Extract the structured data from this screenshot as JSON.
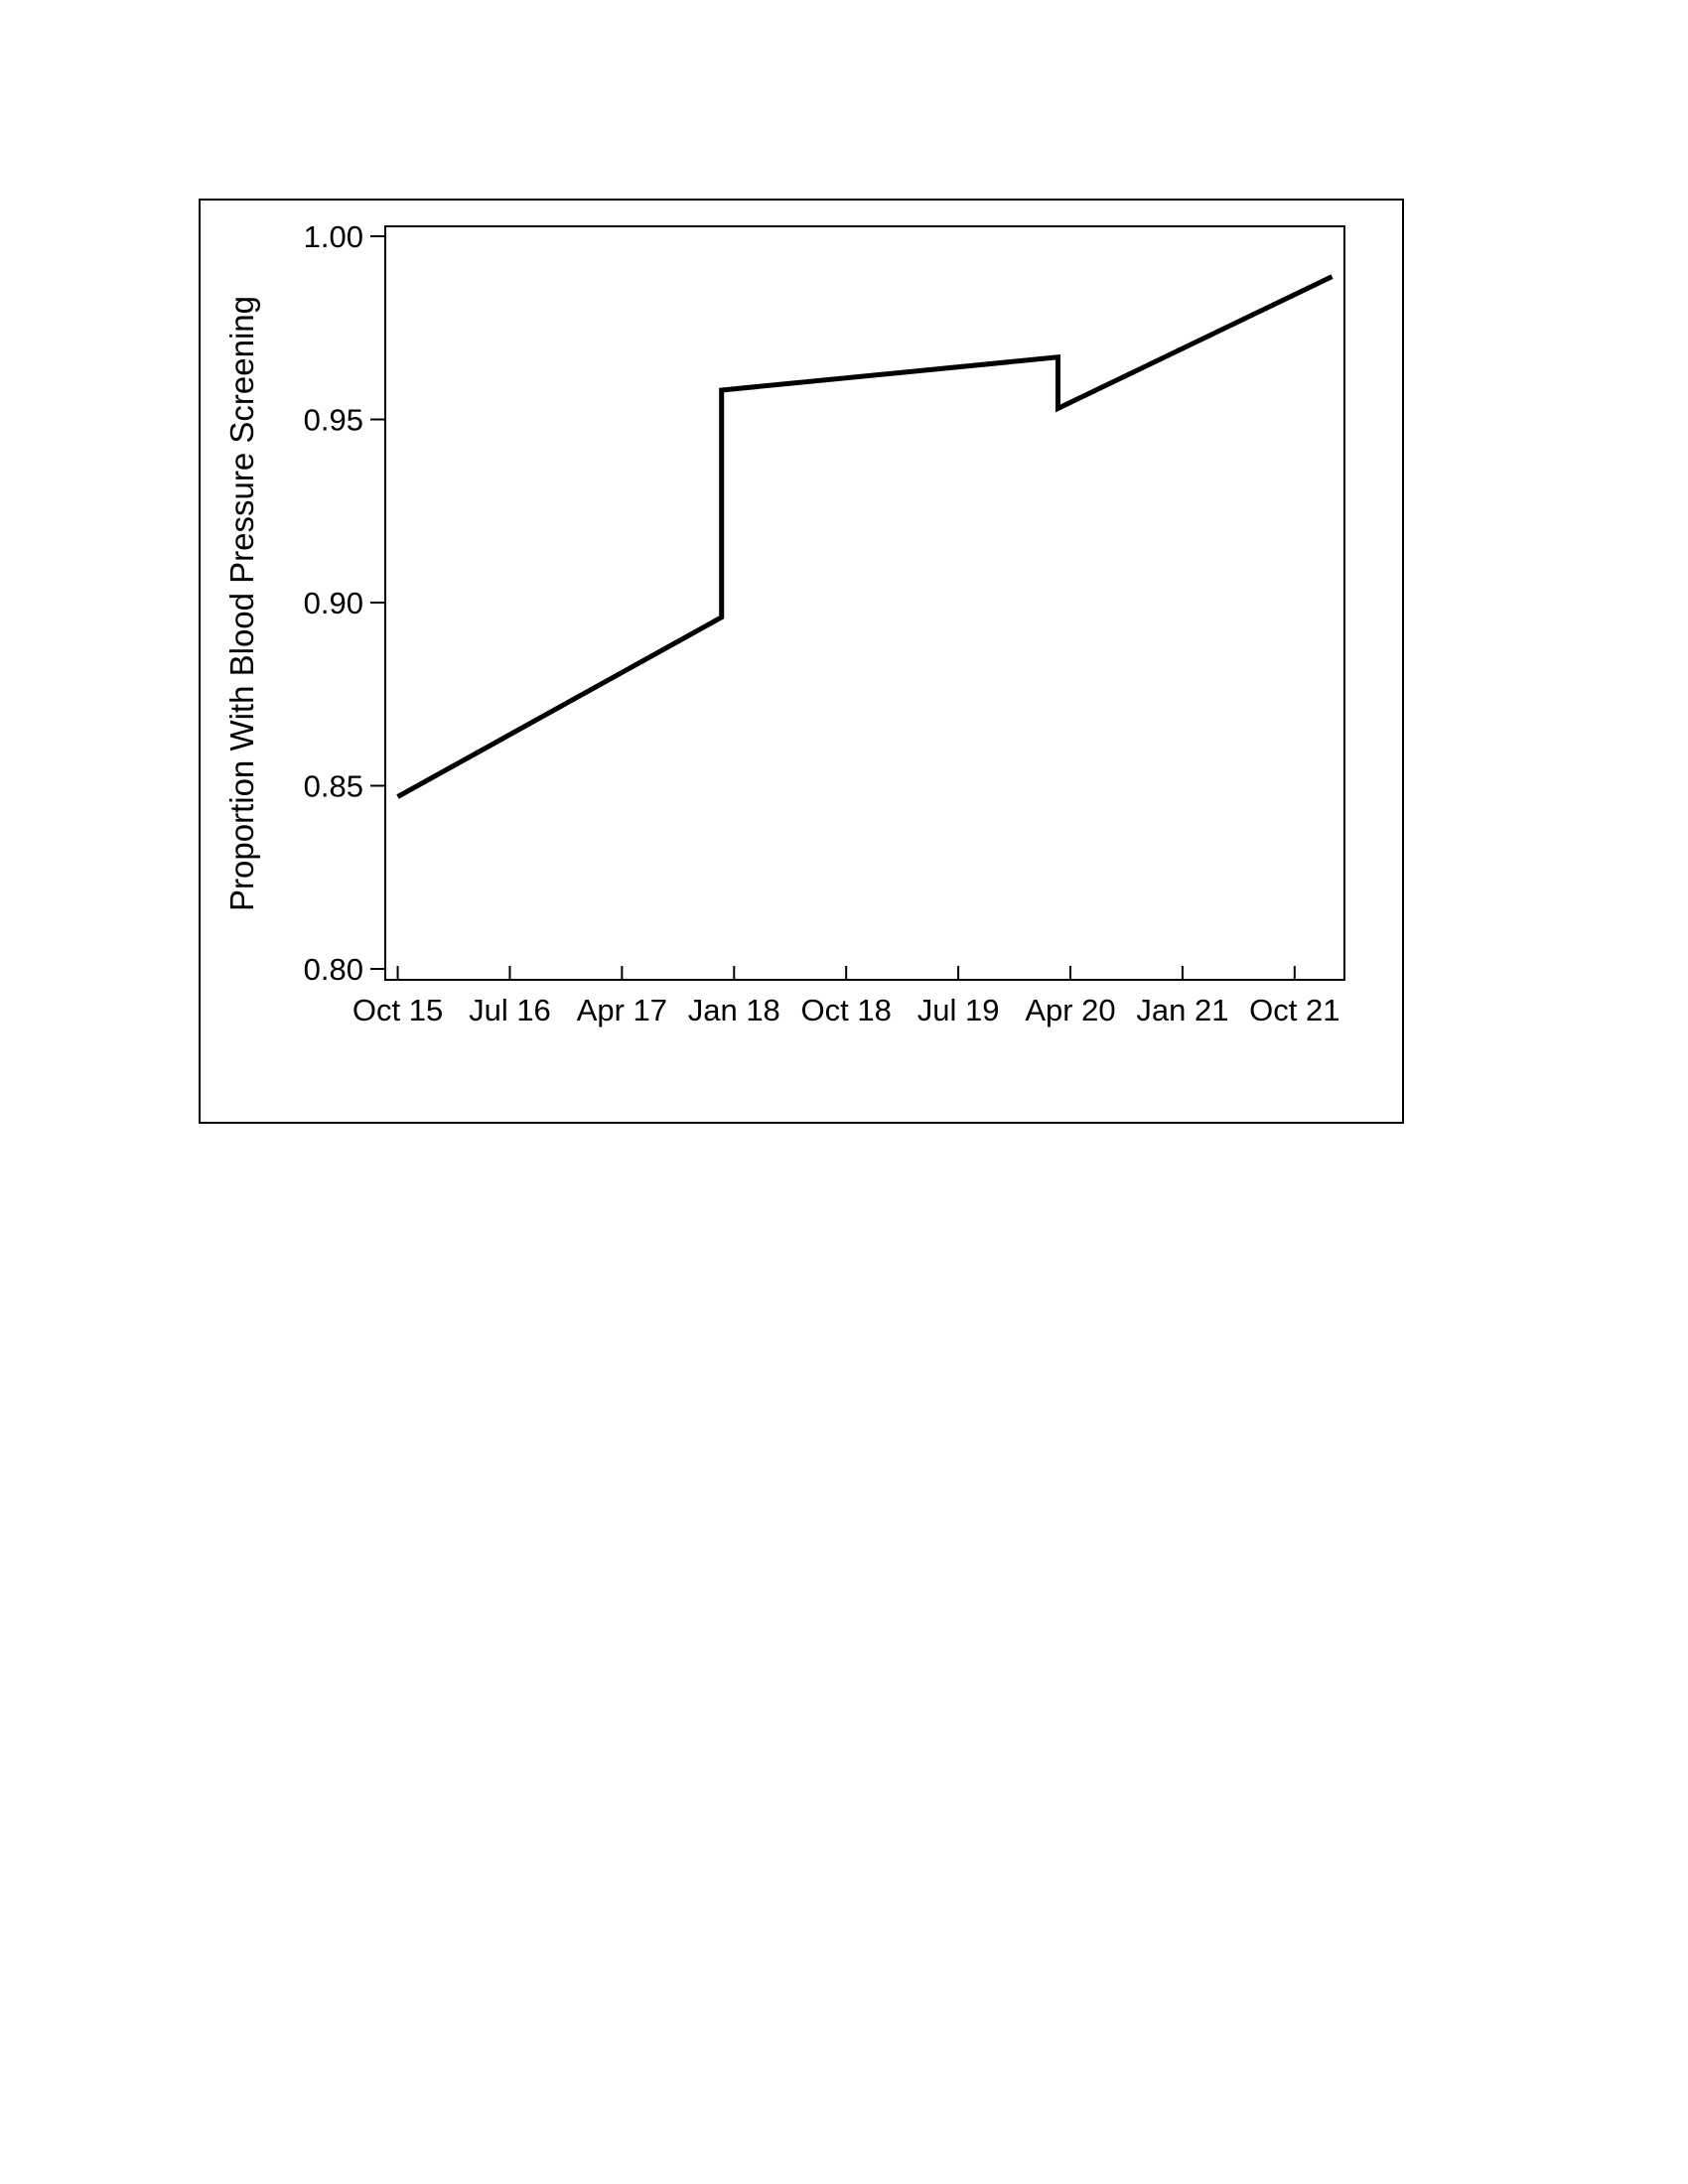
{
  "chart_data": {
    "type": "line",
    "title": "",
    "xlabel": "",
    "ylabel": "Proportion With Blood Pressure Screening",
    "ylim": [
      0.8,
      1.0
    ],
    "y_ticks": [
      {
        "value": 0.8,
        "label": "0.80"
      },
      {
        "value": 0.85,
        "label": "0.85"
      },
      {
        "value": 0.9,
        "label": "0.90"
      },
      {
        "value": 0.95,
        "label": "0.95"
      },
      {
        "value": 1.0,
        "label": "1.00"
      }
    ],
    "x_ticks": [
      {
        "value": "2015-10",
        "label": "Oct 15"
      },
      {
        "value": "2016-07",
        "label": "Jul 16"
      },
      {
        "value": "2017-04",
        "label": "Apr 17"
      },
      {
        "value": "2018-01",
        "label": "Jan 18"
      },
      {
        "value": "2018-10",
        "label": "Oct 18"
      },
      {
        "value": "2019-07",
        "label": "Jul 19"
      },
      {
        "value": "2020-04",
        "label": "Apr 20"
      },
      {
        "value": "2021-01",
        "label": "Jan 21"
      },
      {
        "value": "2021-10",
        "label": "Oct 21"
      }
    ],
    "xlim": [
      "2015-09",
      "2022-02"
    ],
    "grid": false,
    "line_color": "#000000",
    "series": [
      {
        "x": [
          "2015-10",
          "2017-12",
          "2017-12",
          "2020-03",
          "2020-03",
          "2022-01"
        ],
        "y": [
          0.847,
          0.896,
          0.958,
          0.967,
          0.953,
          0.989
        ]
      }
    ]
  }
}
